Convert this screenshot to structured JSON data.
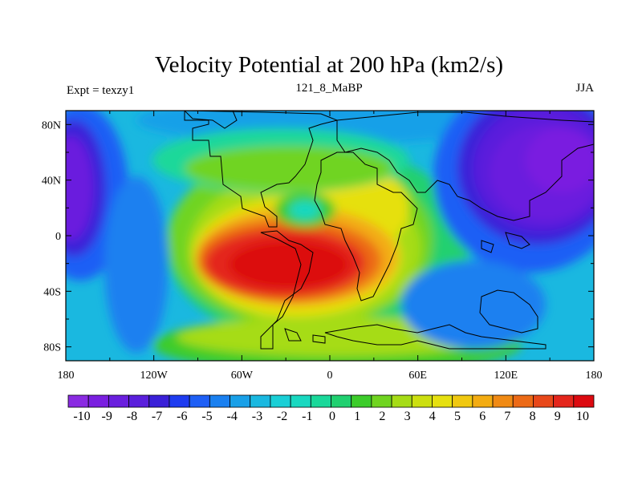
{
  "title": "Velocity Potential at 200 hPa (km2/s)",
  "left_label": "Expt = texzy1",
  "center_label": "121_8_MaBP",
  "right_label": "JJA",
  "x_ticks": [
    "180",
    "120W",
    "60W",
    "0",
    "60E",
    "120E",
    "180"
  ],
  "y_ticks": [
    "80N",
    "40N",
    "0",
    "40S",
    "80S"
  ],
  "colorbar": {
    "labels": [
      "-10",
      "-9",
      "-8",
      "-7",
      "-6",
      "-5",
      "-4",
      "-3",
      "-2",
      "-1",
      "0",
      "1",
      "2",
      "3",
      "4",
      "5",
      "6",
      "7",
      "8",
      "9",
      "10"
    ],
    "colors": [
      "#8a2be2",
      "#7a1fe0",
      "#6a1fde",
      "#5a1fdc",
      "#3a20d8",
      "#1e3cf0",
      "#1e5ff5",
      "#1a80f0",
      "#19a0e8",
      "#1ab8e0",
      "#1acfd6",
      "#19d8c0",
      "#1ad89a",
      "#20d070",
      "#3ccc2a",
      "#70d420",
      "#a6dc16",
      "#ccdf10",
      "#e6e010",
      "#f0c810",
      "#f3ac12",
      "#f08a14",
      "#ec6a16",
      "#e8481a",
      "#e4261c",
      "#dc0a10"
    ]
  },
  "chart_data": {
    "type": "filled-contour-map",
    "title": "Velocity Potential at 200 hPa (km2/s)",
    "variable": "Velocity Potential at 200 hPa",
    "units": "km2/s",
    "experiment": "texzy1",
    "subtitle": "121_8_MaBP",
    "season": "JJA",
    "lon_range": [
      -180,
      180
    ],
    "lat_range": [
      -90,
      90
    ],
    "contour_levels": [
      -10,
      -9,
      -8,
      -7,
      -6,
      -5,
      -4,
      -3,
      -2,
      -1,
      0,
      1,
      2,
      3,
      4,
      5,
      6,
      7,
      8,
      9,
      10
    ],
    "features": [
      {
        "name": "positive maximum",
        "lon": -20,
        "lat": -25,
        "value": 10
      },
      {
        "name": "negative minimum",
        "lon": 120,
        "lat": 35,
        "value": -10
      },
      {
        "name": "negative minimum",
        "lon": -175,
        "lat": 25,
        "value": -8
      }
    ]
  }
}
